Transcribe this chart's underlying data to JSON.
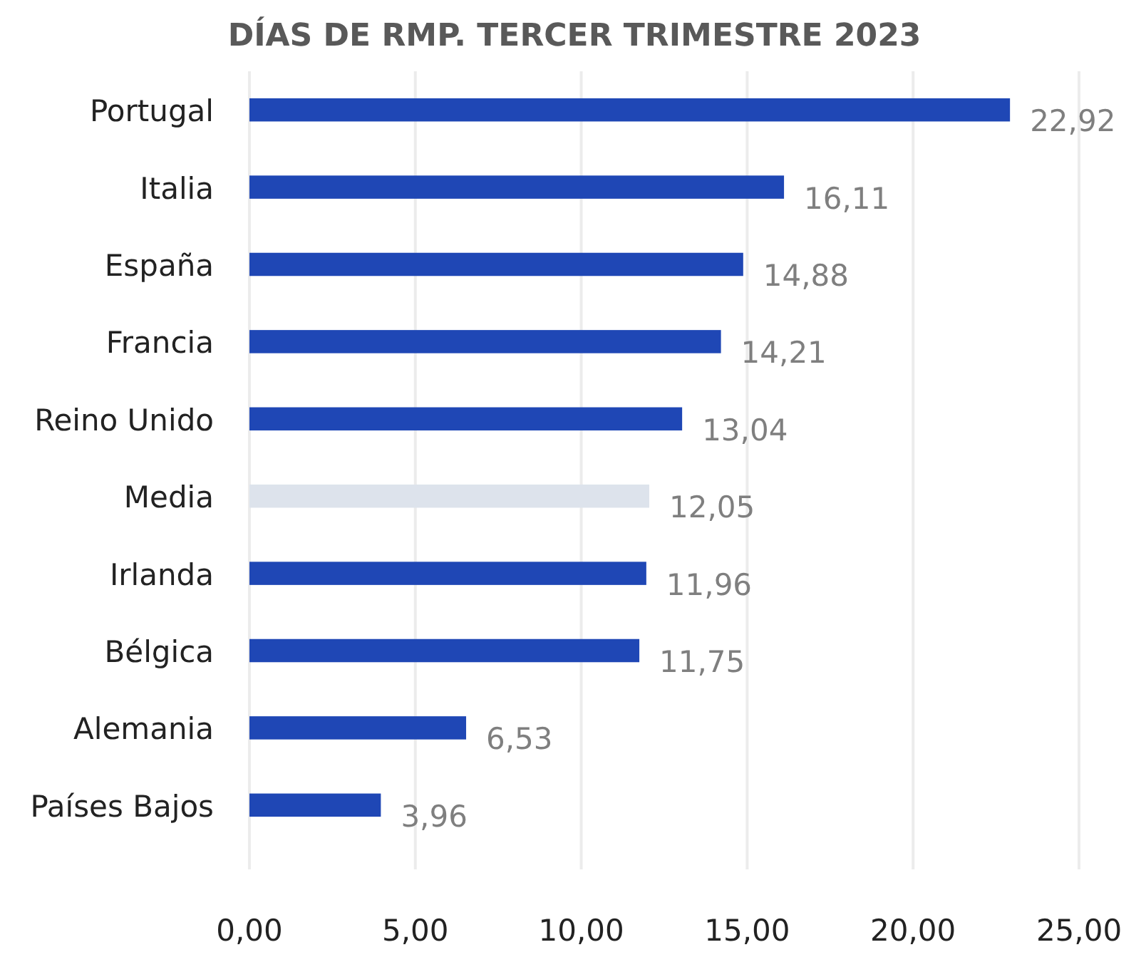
{
  "chart_data": {
    "type": "bar",
    "orientation": "horizontal",
    "title": "DÍAS DE RMP. TERCER TRIMESTRE 2023",
    "categories": [
      "Portugal",
      "Italia",
      "España",
      "Francia",
      "Reino Unido",
      "Media",
      "Irlanda",
      "Bélgica",
      "Alemania",
      "Países Bajos"
    ],
    "values": [
      22.92,
      16.11,
      14.88,
      14.21,
      13.04,
      12.05,
      11.96,
      11.75,
      6.53,
      3.96
    ],
    "colors": [
      "#1f47b5",
      "#1f47b5",
      "#1f47b5",
      "#1f47b5",
      "#1f47b5",
      "#dde3ec",
      "#1f47b5",
      "#1f47b5",
      "#1f47b5",
      "#1f47b5"
    ],
    "value_labels": [
      "22,92",
      "16,11",
      "14,88",
      "14,21",
      "13,04",
      "12,05",
      "11,96",
      "11,75",
      "6,53",
      "3,96"
    ],
    "xlim": [
      0,
      25
    ],
    "xticks": [
      {
        "value": 0,
        "label": "0,00"
      },
      {
        "value": 5,
        "label": "5,00"
      },
      {
        "value": 10,
        "label": "10,00"
      },
      {
        "value": 15,
        "label": "15,00"
      },
      {
        "value": 20,
        "label": "20,00"
      },
      {
        "value": 25,
        "label": "25,00"
      }
    ],
    "grid": "x"
  }
}
